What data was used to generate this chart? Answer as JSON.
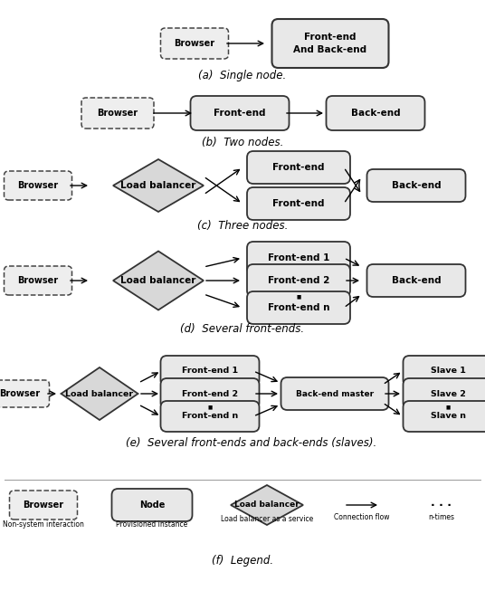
{
  "background_color": "#f5f5f5",
  "fig_width": 5.36,
  "fig_height": 6.53,
  "captions": [
    "(a)  Single node.",
    "(b)  Two nodes.",
    "(c)  Three nodes.",
    "(d)  Several front-ends.",
    "(e)  Several front-ends and back-ends (slaves).",
    "(f)  Legend."
  ]
}
